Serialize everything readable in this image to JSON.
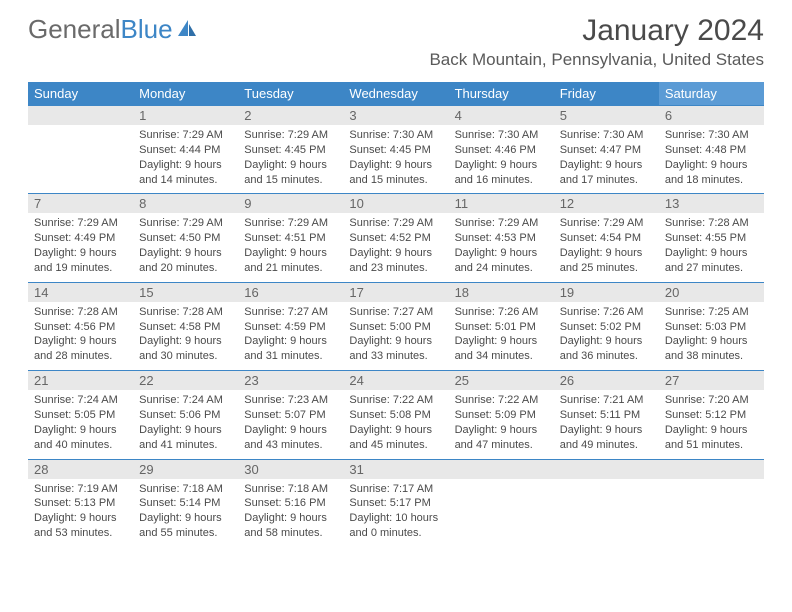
{
  "logo": {
    "text1": "General",
    "text2": "Blue"
  },
  "title": "January 2024",
  "location": "Back Mountain, Pennsylvania, United States",
  "colors": {
    "header_bg": "#3d86c6",
    "header_sat_bg": "#5b9bd5",
    "daynum_bg": "#e8e8e8",
    "rule": "#3d86c6",
    "text": "#4a4a4a",
    "logo_gray": "#6a6a6a",
    "logo_blue": "#3d86c6"
  },
  "day_headers": [
    "Sunday",
    "Monday",
    "Tuesday",
    "Wednesday",
    "Thursday",
    "Friday",
    "Saturday"
  ],
  "weeks": [
    [
      {
        "n": "",
        "sunrise": "",
        "sunset": "",
        "daylight1": "",
        "daylight2": ""
      },
      {
        "n": "1",
        "sunrise": "Sunrise: 7:29 AM",
        "sunset": "Sunset: 4:44 PM",
        "daylight1": "Daylight: 9 hours",
        "daylight2": "and 14 minutes."
      },
      {
        "n": "2",
        "sunrise": "Sunrise: 7:29 AM",
        "sunset": "Sunset: 4:45 PM",
        "daylight1": "Daylight: 9 hours",
        "daylight2": "and 15 minutes."
      },
      {
        "n": "3",
        "sunrise": "Sunrise: 7:30 AM",
        "sunset": "Sunset: 4:45 PM",
        "daylight1": "Daylight: 9 hours",
        "daylight2": "and 15 minutes."
      },
      {
        "n": "4",
        "sunrise": "Sunrise: 7:30 AM",
        "sunset": "Sunset: 4:46 PM",
        "daylight1": "Daylight: 9 hours",
        "daylight2": "and 16 minutes."
      },
      {
        "n": "5",
        "sunrise": "Sunrise: 7:30 AM",
        "sunset": "Sunset: 4:47 PM",
        "daylight1": "Daylight: 9 hours",
        "daylight2": "and 17 minutes."
      },
      {
        "n": "6",
        "sunrise": "Sunrise: 7:30 AM",
        "sunset": "Sunset: 4:48 PM",
        "daylight1": "Daylight: 9 hours",
        "daylight2": "and 18 minutes."
      }
    ],
    [
      {
        "n": "7",
        "sunrise": "Sunrise: 7:29 AM",
        "sunset": "Sunset: 4:49 PM",
        "daylight1": "Daylight: 9 hours",
        "daylight2": "and 19 minutes."
      },
      {
        "n": "8",
        "sunrise": "Sunrise: 7:29 AM",
        "sunset": "Sunset: 4:50 PM",
        "daylight1": "Daylight: 9 hours",
        "daylight2": "and 20 minutes."
      },
      {
        "n": "9",
        "sunrise": "Sunrise: 7:29 AM",
        "sunset": "Sunset: 4:51 PM",
        "daylight1": "Daylight: 9 hours",
        "daylight2": "and 21 minutes."
      },
      {
        "n": "10",
        "sunrise": "Sunrise: 7:29 AM",
        "sunset": "Sunset: 4:52 PM",
        "daylight1": "Daylight: 9 hours",
        "daylight2": "and 23 minutes."
      },
      {
        "n": "11",
        "sunrise": "Sunrise: 7:29 AM",
        "sunset": "Sunset: 4:53 PM",
        "daylight1": "Daylight: 9 hours",
        "daylight2": "and 24 minutes."
      },
      {
        "n": "12",
        "sunrise": "Sunrise: 7:29 AM",
        "sunset": "Sunset: 4:54 PM",
        "daylight1": "Daylight: 9 hours",
        "daylight2": "and 25 minutes."
      },
      {
        "n": "13",
        "sunrise": "Sunrise: 7:28 AM",
        "sunset": "Sunset: 4:55 PM",
        "daylight1": "Daylight: 9 hours",
        "daylight2": "and 27 minutes."
      }
    ],
    [
      {
        "n": "14",
        "sunrise": "Sunrise: 7:28 AM",
        "sunset": "Sunset: 4:56 PM",
        "daylight1": "Daylight: 9 hours",
        "daylight2": "and 28 minutes."
      },
      {
        "n": "15",
        "sunrise": "Sunrise: 7:28 AM",
        "sunset": "Sunset: 4:58 PM",
        "daylight1": "Daylight: 9 hours",
        "daylight2": "and 30 minutes."
      },
      {
        "n": "16",
        "sunrise": "Sunrise: 7:27 AM",
        "sunset": "Sunset: 4:59 PM",
        "daylight1": "Daylight: 9 hours",
        "daylight2": "and 31 minutes."
      },
      {
        "n": "17",
        "sunrise": "Sunrise: 7:27 AM",
        "sunset": "Sunset: 5:00 PM",
        "daylight1": "Daylight: 9 hours",
        "daylight2": "and 33 minutes."
      },
      {
        "n": "18",
        "sunrise": "Sunrise: 7:26 AM",
        "sunset": "Sunset: 5:01 PM",
        "daylight1": "Daylight: 9 hours",
        "daylight2": "and 34 minutes."
      },
      {
        "n": "19",
        "sunrise": "Sunrise: 7:26 AM",
        "sunset": "Sunset: 5:02 PM",
        "daylight1": "Daylight: 9 hours",
        "daylight2": "and 36 minutes."
      },
      {
        "n": "20",
        "sunrise": "Sunrise: 7:25 AM",
        "sunset": "Sunset: 5:03 PM",
        "daylight1": "Daylight: 9 hours",
        "daylight2": "and 38 minutes."
      }
    ],
    [
      {
        "n": "21",
        "sunrise": "Sunrise: 7:24 AM",
        "sunset": "Sunset: 5:05 PM",
        "daylight1": "Daylight: 9 hours",
        "daylight2": "and 40 minutes."
      },
      {
        "n": "22",
        "sunrise": "Sunrise: 7:24 AM",
        "sunset": "Sunset: 5:06 PM",
        "daylight1": "Daylight: 9 hours",
        "daylight2": "and 41 minutes."
      },
      {
        "n": "23",
        "sunrise": "Sunrise: 7:23 AM",
        "sunset": "Sunset: 5:07 PM",
        "daylight1": "Daylight: 9 hours",
        "daylight2": "and 43 minutes."
      },
      {
        "n": "24",
        "sunrise": "Sunrise: 7:22 AM",
        "sunset": "Sunset: 5:08 PM",
        "daylight1": "Daylight: 9 hours",
        "daylight2": "and 45 minutes."
      },
      {
        "n": "25",
        "sunrise": "Sunrise: 7:22 AM",
        "sunset": "Sunset: 5:09 PM",
        "daylight1": "Daylight: 9 hours",
        "daylight2": "and 47 minutes."
      },
      {
        "n": "26",
        "sunrise": "Sunrise: 7:21 AM",
        "sunset": "Sunset: 5:11 PM",
        "daylight1": "Daylight: 9 hours",
        "daylight2": "and 49 minutes."
      },
      {
        "n": "27",
        "sunrise": "Sunrise: 7:20 AM",
        "sunset": "Sunset: 5:12 PM",
        "daylight1": "Daylight: 9 hours",
        "daylight2": "and 51 minutes."
      }
    ],
    [
      {
        "n": "28",
        "sunrise": "Sunrise: 7:19 AM",
        "sunset": "Sunset: 5:13 PM",
        "daylight1": "Daylight: 9 hours",
        "daylight2": "and 53 minutes."
      },
      {
        "n": "29",
        "sunrise": "Sunrise: 7:18 AM",
        "sunset": "Sunset: 5:14 PM",
        "daylight1": "Daylight: 9 hours",
        "daylight2": "and 55 minutes."
      },
      {
        "n": "30",
        "sunrise": "Sunrise: 7:18 AM",
        "sunset": "Sunset: 5:16 PM",
        "daylight1": "Daylight: 9 hours",
        "daylight2": "and 58 minutes."
      },
      {
        "n": "31",
        "sunrise": "Sunrise: 7:17 AM",
        "sunset": "Sunset: 5:17 PM",
        "daylight1": "Daylight: 10 hours",
        "daylight2": "and 0 minutes."
      },
      {
        "n": "",
        "sunrise": "",
        "sunset": "",
        "daylight1": "",
        "daylight2": ""
      },
      {
        "n": "",
        "sunrise": "",
        "sunset": "",
        "daylight1": "",
        "daylight2": ""
      },
      {
        "n": "",
        "sunrise": "",
        "sunset": "",
        "daylight1": "",
        "daylight2": ""
      }
    ]
  ]
}
